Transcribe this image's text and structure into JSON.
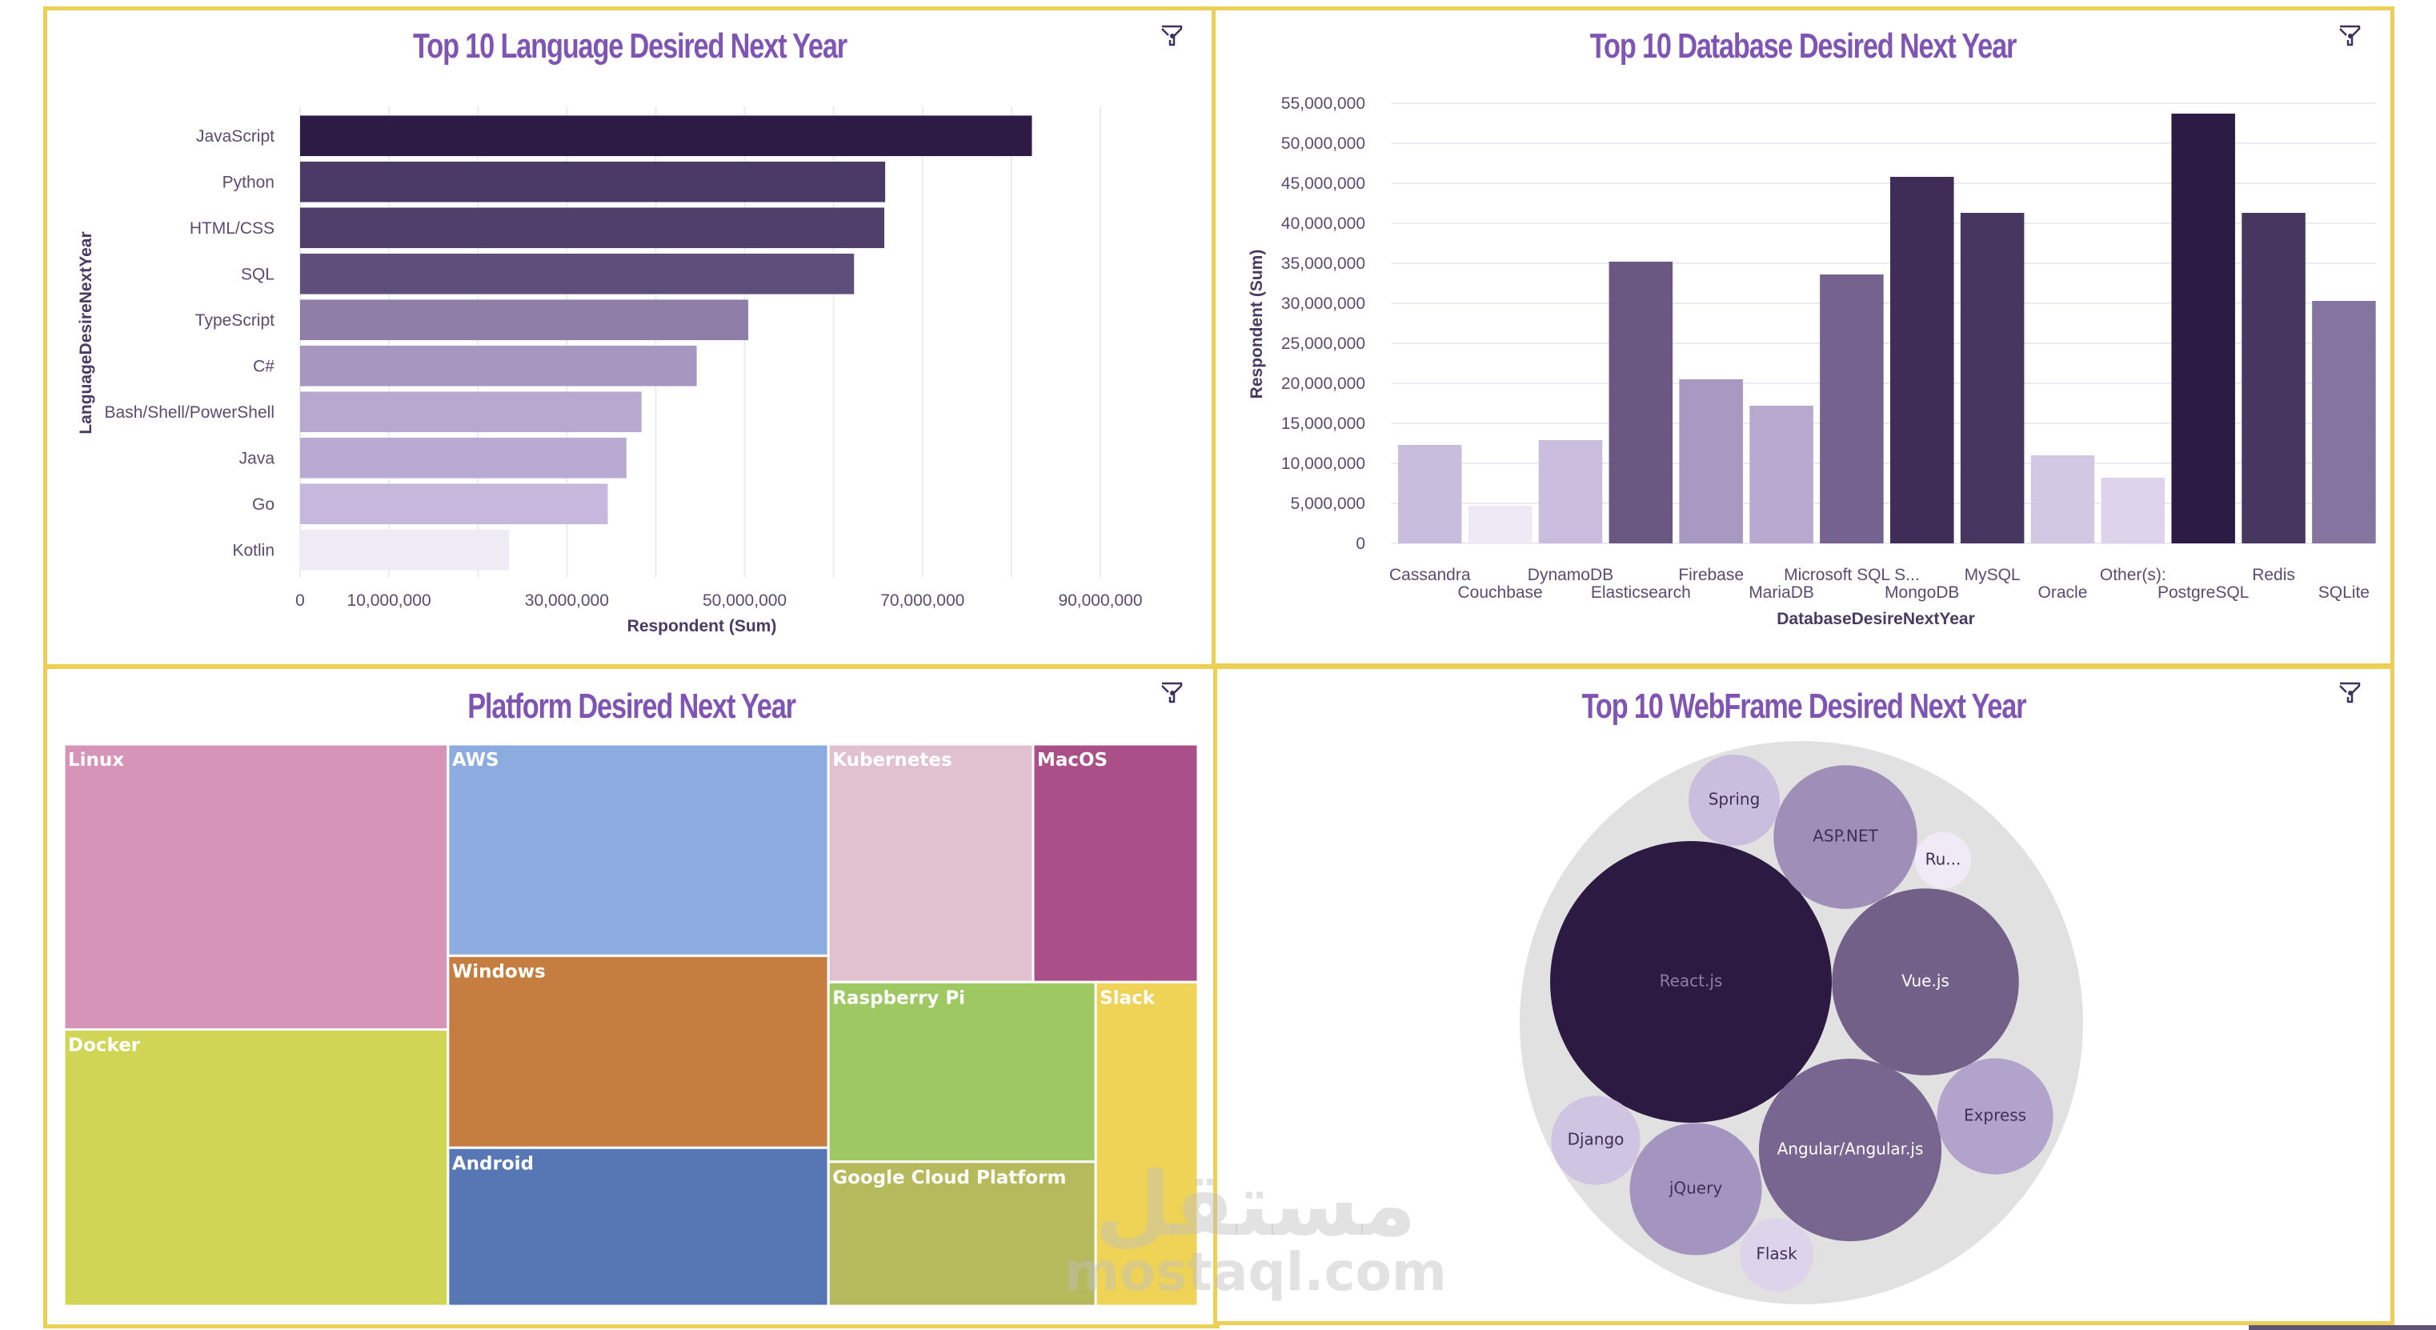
{
  "dashboard": {
    "border_color": "#ecd055",
    "title_color": "#7f54b3",
    "filter_icon": "filter-icon",
    "watermark": {
      "arabic": "مستقل",
      "latin": "mostaql.com"
    }
  },
  "chart_data": [
    {
      "id": "language",
      "type": "bar",
      "orientation": "horizontal",
      "title": "Top 10 Language Desired Next Year",
      "xlabel": "Respondent (Sum)",
      "ylabel": "LanguageDesireNextYear",
      "xlim": [
        0,
        90000000
      ],
      "grid": true,
      "xticks": [
        0,
        10000000,
        30000000,
        50000000,
        70000000,
        90000000
      ],
      "xtick_labels": [
        "0",
        "10,000,000",
        "30,000,000",
        "50,000,000",
        "70,000,000",
        "90,000,000"
      ],
      "categories": [
        "JavaScript",
        "Python",
        "HTML/CSS",
        "SQL",
        "TypeScript",
        "C#",
        "Bash/Shell/PowerShell",
        "Java",
        "Go",
        "Kotlin"
      ],
      "values": [
        82300000,
        65800000,
        65700000,
        62300000,
        50400000,
        44600000,
        38400000,
        36700000,
        34600000,
        23500000
      ],
      "colors": [
        "#2d1b45",
        "#4b3a66",
        "#4f3f6a",
        "#5e4e7c",
        "#8f7fa8",
        "#a597bf",
        "#b6a8cf",
        "#b8aad2",
        "#c6b8dc",
        "#eeebf5"
      ]
    },
    {
      "id": "database",
      "type": "bar",
      "orientation": "vertical",
      "title": "Top 10 Database Desired Next Year",
      "xlabel": "DatabaseDesireNextYear",
      "ylabel": "Respondent (Sum)",
      "ylim": [
        0,
        55000000
      ],
      "grid": true,
      "yticks": [
        0,
        5000000,
        10000000,
        15000000,
        20000000,
        25000000,
        30000000,
        35000000,
        40000000,
        45000000,
        50000000,
        55000000
      ],
      "ytick_labels": [
        "0",
        "5,000,000",
        "10,000,000",
        "15,000,000",
        "20,000,000",
        "25,000,000",
        "30,000,000",
        "35,000,000",
        "40,000,000",
        "45,000,000",
        "50,000,000",
        "55,000,000"
      ],
      "categories": [
        "Cassandra",
        "Couchbase",
        "DynamoDB",
        "Elasticsearch",
        "Firebase",
        "MariaDB",
        "Microsoft SQL S...",
        "MongoDB",
        "MySQL",
        "Oracle",
        "Other(s):",
        "PostgreSQL",
        "Redis",
        "SQLite"
      ],
      "values": [
        12300000,
        4700000,
        12900000,
        35200000,
        20500000,
        17200000,
        33600000,
        45800000,
        41300000,
        11000000,
        8200000,
        53700000,
        41300000,
        30300000
      ],
      "colors": [
        "#c9bddd",
        "#eeeaf5",
        "#cbbddd",
        "#6a5883",
        "#a899c3",
        "#b8a9d0",
        "#75628f",
        "#3f2d57",
        "#473660",
        "#d3c8e4",
        "#ddd3ea",
        "#2c1b45",
        "#473660",
        "#8374a0"
      ]
    },
    {
      "id": "platform",
      "type": "treemap",
      "title": "Platform Desired Next Year",
      "categories": [
        "Linux",
        "Docker",
        "AWS",
        "Windows",
        "Android",
        "Kubernetes",
        "MacOS",
        "Raspberry Pi",
        "Google Cloud Platform",
        "Slack"
      ],
      "relative_area": [
        0.162,
        0.157,
        0.119,
        0.108,
        0.089,
        0.072,
        0.058,
        0.071,
        0.057,
        0.049
      ],
      "colors": [
        "#d794b9",
        "#d0d556",
        "#8cabdf",
        "#c67e40",
        "#5677b4",
        "#e1c0cf",
        "#ab4f88",
        "#9ec862",
        "#b6ba5c",
        "#eed356"
      ]
    },
    {
      "id": "webframe",
      "type": "bubble",
      "title": "Top 10 WebFrame Desired Next Year",
      "categories": [
        "React.js",
        "Vue.js",
        "Angular/Angular.js",
        "ASP.NET",
        "jQuery",
        "Express",
        "Spring",
        "Django",
        "Flask",
        "Ru..."
      ],
      "relative_size": [
        1.0,
        0.44,
        0.42,
        0.26,
        0.22,
        0.17,
        0.105,
        0.1,
        0.068,
        0.04
      ],
      "colors": [
        "#2c1a42",
        "#736089",
        "#786590",
        "#9f8eb8",
        "#a494c0",
        "#b2a3cc",
        "#cabedf",
        "#cfc4e1",
        "#ddd3ea",
        "#efeaf5"
      ],
      "label_colors": [
        "#8f7ea8",
        "#ffffff",
        "#ffffff",
        "#3f2f57",
        "#3f2f57",
        "#3f2f57",
        "#3f2f57",
        "#3f2f57",
        "#3f2f57",
        "#3f2f57"
      ],
      "container_color": "#e1e1e1"
    }
  ]
}
